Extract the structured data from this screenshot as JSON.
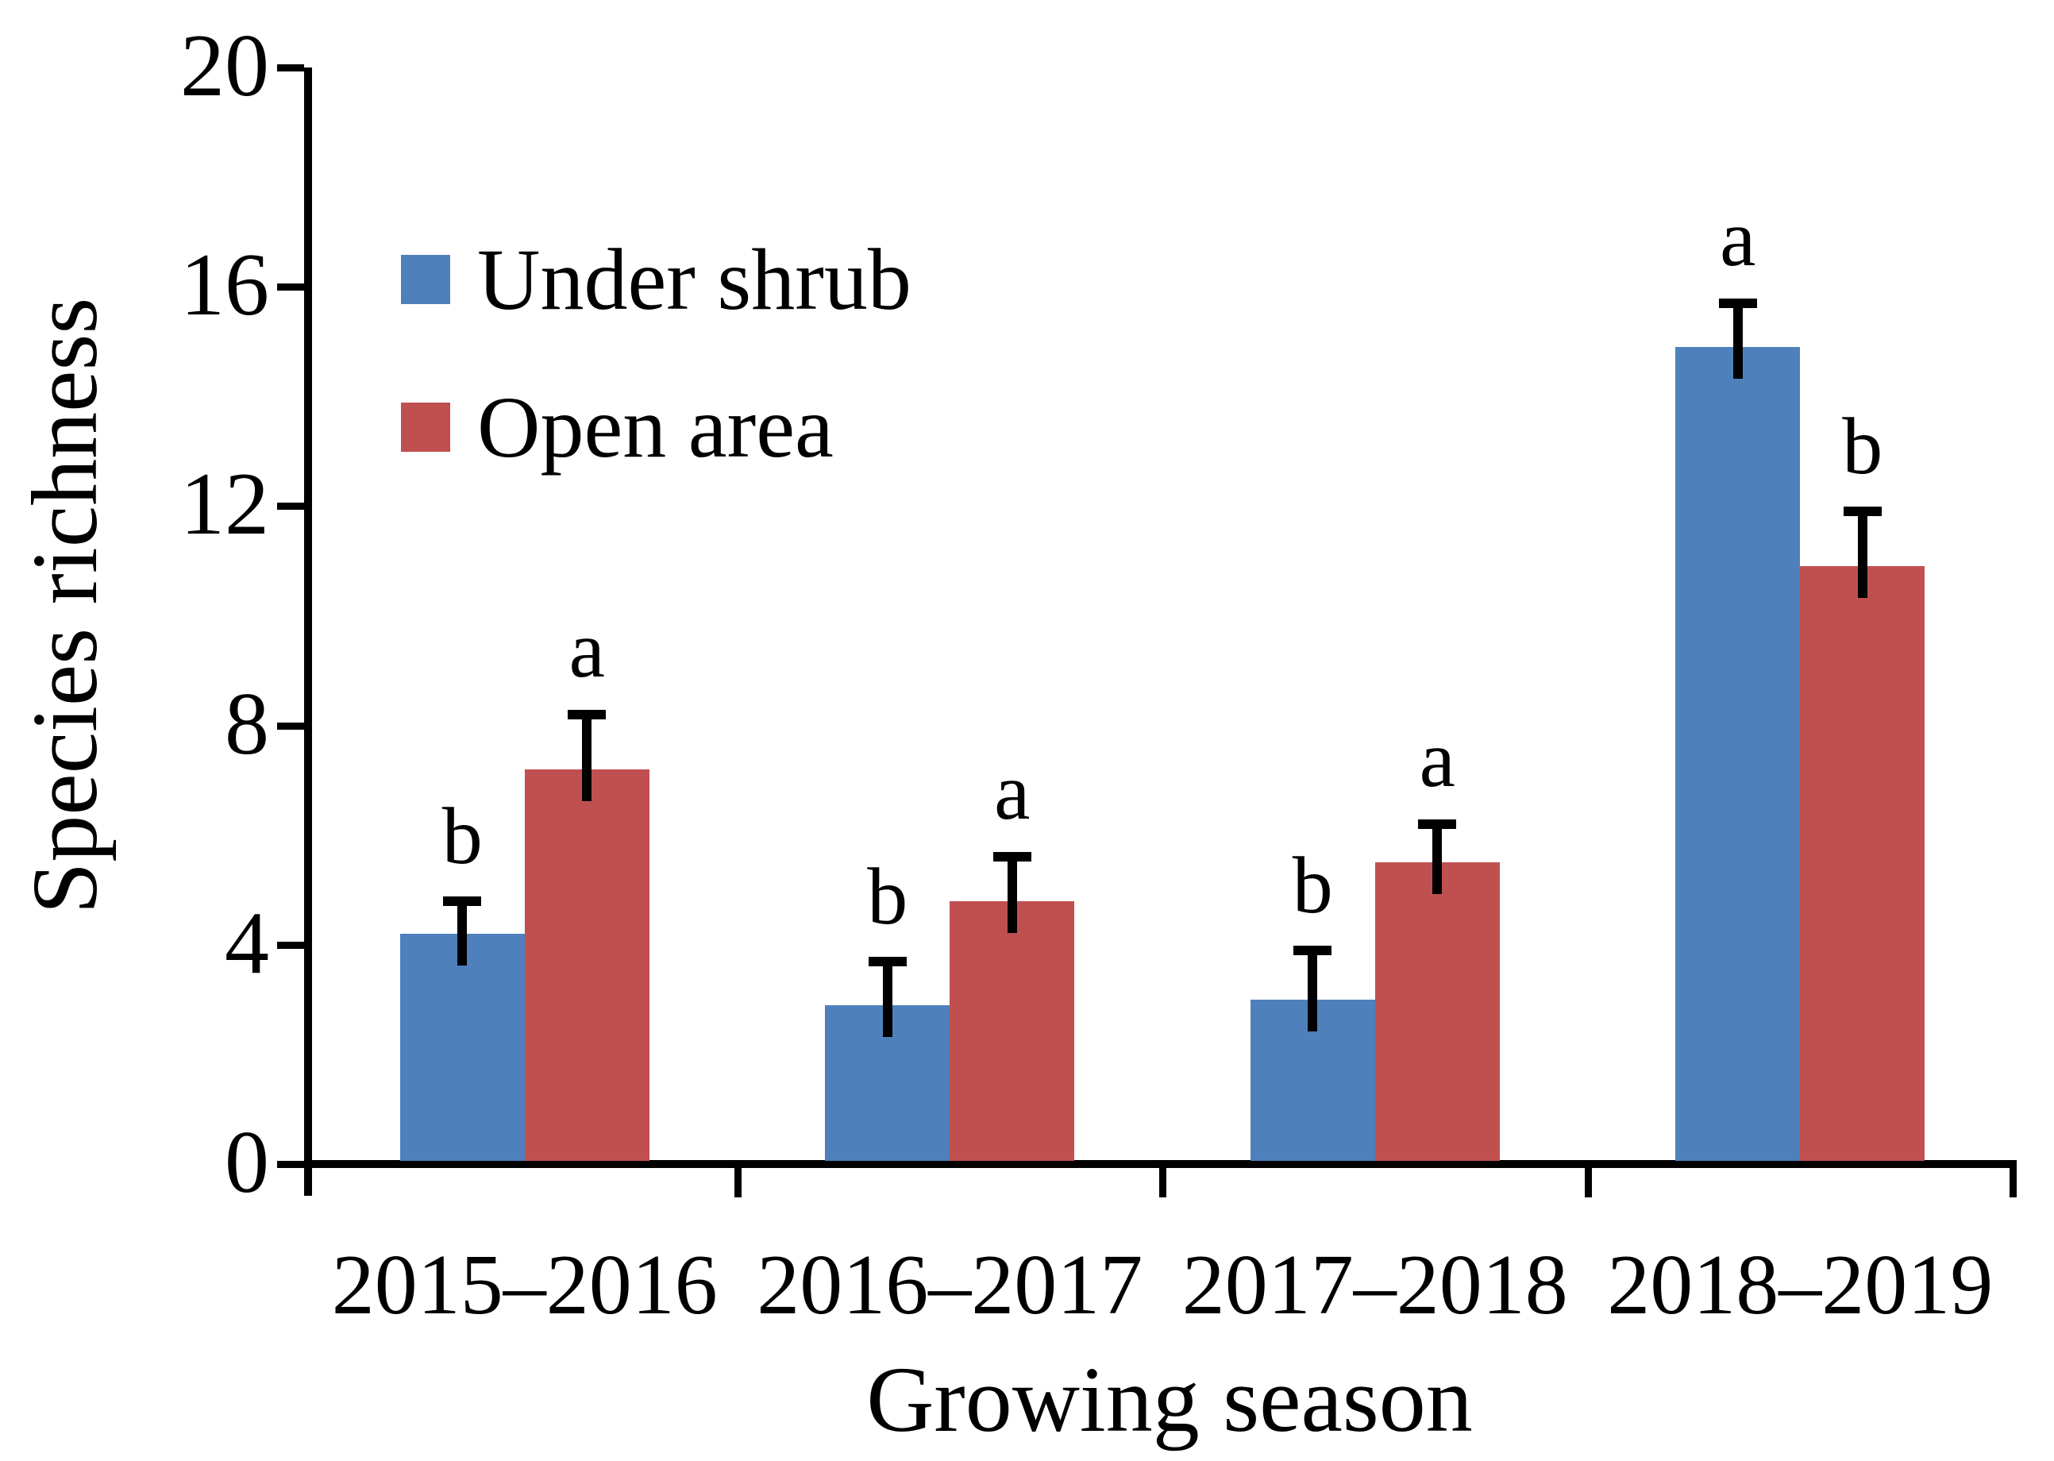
{
  "figure": {
    "background": "#ffffff",
    "text_color": "#000000",
    "axis_color": "#000000"
  },
  "chart_data": {
    "type": "bar",
    "title": "",
    "xlabel": "Growing season",
    "ylabel": "Species richness",
    "categories": [
      "2015–2016",
      "2016–2017",
      "2017–2018",
      "2018–2019"
    ],
    "series": [
      {
        "name": "Under shrub",
        "color": "#4E80BC",
        "values": [
          4.2,
          2.9,
          3.0,
          14.9
        ],
        "errors": [
          0.6,
          0.8,
          0.9,
          0.8
        ],
        "sig_letters": [
          "b",
          "b",
          "b",
          "a"
        ]
      },
      {
        "name": "Open area",
        "color": "#C0504F",
        "values": [
          7.2,
          4.8,
          5.5,
          10.9
        ],
        "errors": [
          1.0,
          0.8,
          0.7,
          1.0
        ],
        "sig_letters": [
          "a",
          "a",
          "a",
          "b"
        ]
      }
    ],
    "ylim": [
      0,
      20
    ],
    "yticks": [
      0,
      4,
      8,
      12,
      16,
      20
    ],
    "grid": false,
    "error_bars": "upper",
    "legend_position": "upper-left-inside"
  }
}
